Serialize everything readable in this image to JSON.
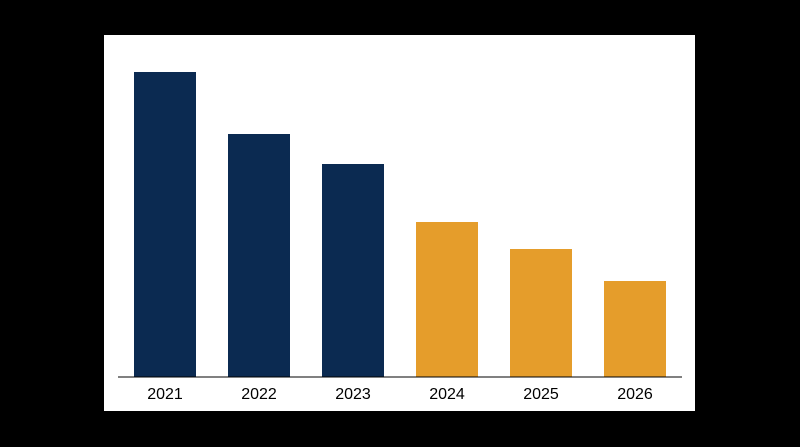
{
  "chart_data": {
    "type": "bar",
    "categories": [
      "2021",
      "2022",
      "2023",
      "2024",
      "2025",
      "2026"
    ],
    "values": [
      305,
      243,
      213,
      155,
      128,
      96
    ],
    "colors": [
      "#0b2a51",
      "#0b2a51",
      "#0b2a51",
      "#e59d2b",
      "#e59d2b",
      "#e59d2b"
    ]
  }
}
